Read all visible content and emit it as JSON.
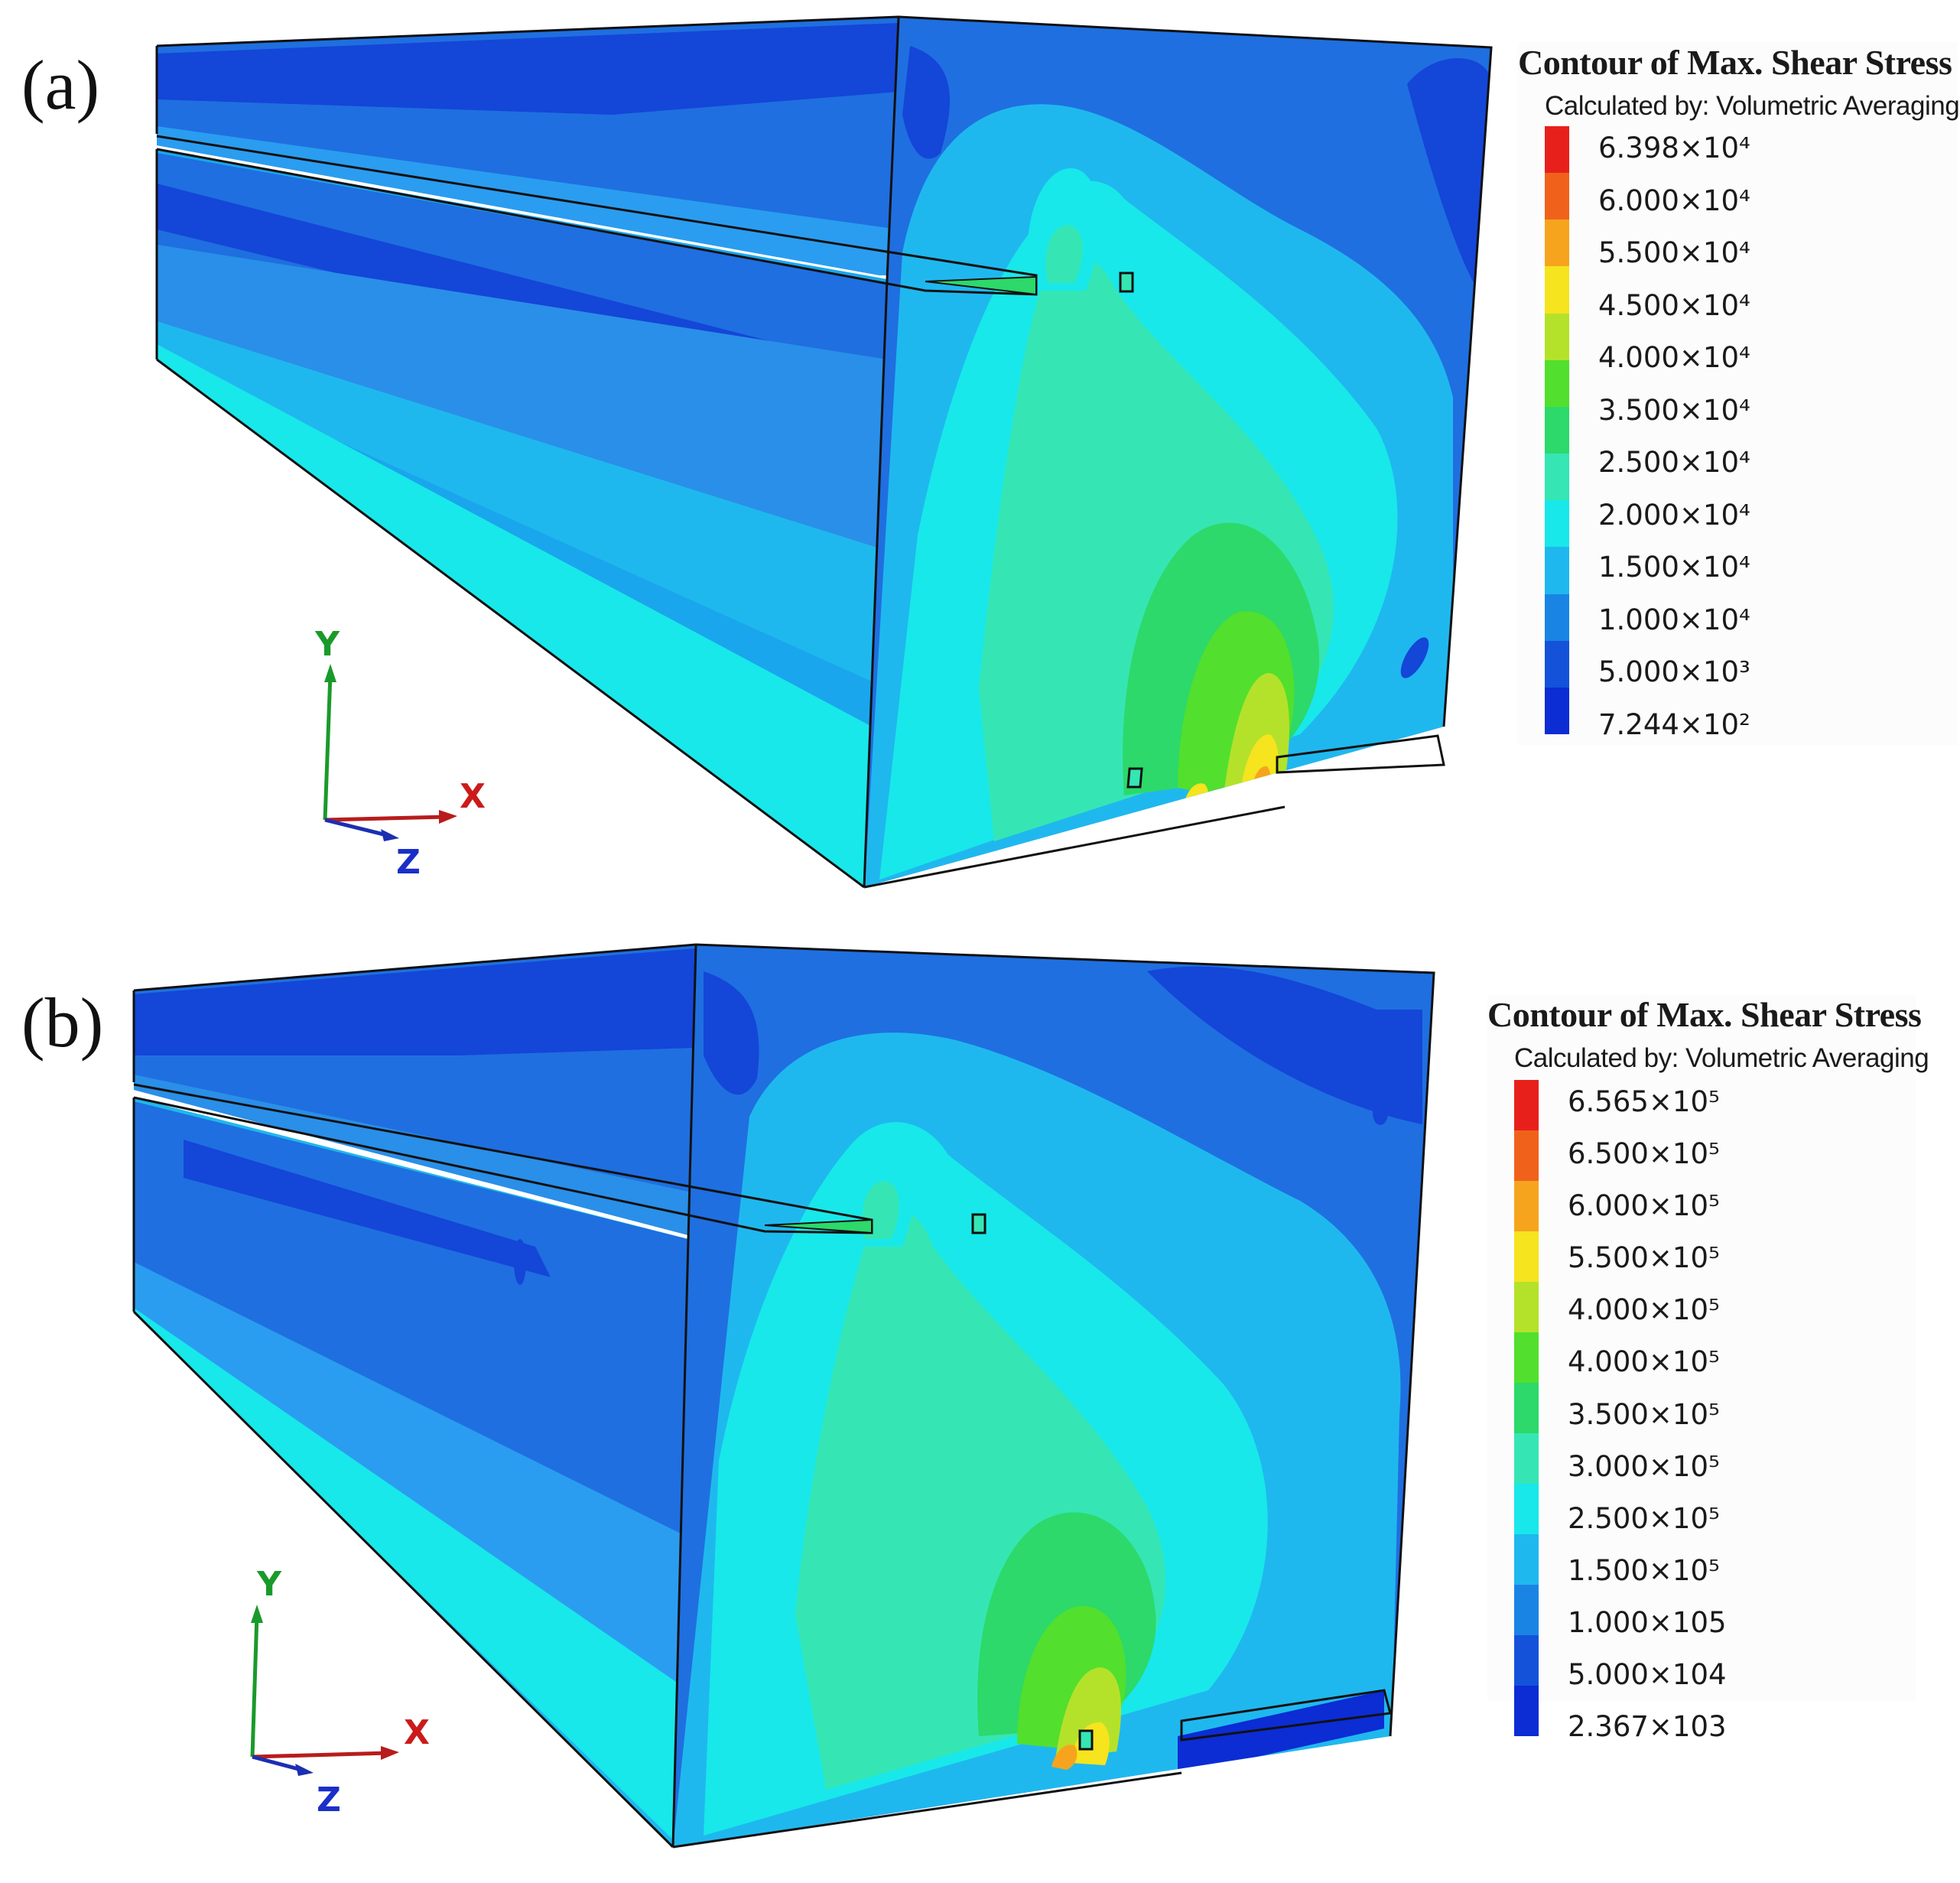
{
  "panels": [
    {
      "label": "(a)",
      "legend": {
        "title": "Contour of Max. Shear Stress",
        "subtitle": "Calculated by: Volumetric Averaging",
        "colors": [
          "#e8201c",
          "#f0621c",
          "#f6a41e",
          "#f5e41e",
          "#b4e22a",
          "#52df2e",
          "#2cd96a",
          "#35e6b4",
          "#18e8ea",
          "#1fb8ee",
          "#1a84e4",
          "#1452da",
          "#0c2cd4"
        ],
        "labels": [
          "6.398×10⁴",
          "6.000×10⁴",
          "5.500×10⁴",
          "4.500×10⁴",
          "4.000×10⁴",
          "3.500×10⁴",
          "2.500×10⁴",
          "2.000×10⁴",
          "1.500×10⁴",
          "1.000×10⁴",
          "5.000×10³",
          "7.244×10²"
        ]
      },
      "axes": {
        "y": "Y",
        "x": "X",
        "z": "Z"
      }
    },
    {
      "label": "(b)",
      "legend": {
        "title": "Contour of Max. Shear Stress",
        "subtitle": "Calculated by: Volumetric Averaging",
        "colors": [
          "#e8201c",
          "#f0621c",
          "#f6a41e",
          "#f5e41e",
          "#b4e22a",
          "#52df2e",
          "#2cd96a",
          "#35e6b4",
          "#18e8ea",
          "#1fb8ee",
          "#1a84e4",
          "#1452da",
          "#0c2cd4"
        ],
        "labels": [
          "6.565×10⁵",
          "6.500×10⁵",
          "6.000×10⁵",
          "5.500×10⁵",
          "4.000×10⁵",
          "4.000×10⁵",
          "3.500×10⁵",
          "3.000×10⁵",
          "2.500×10⁵",
          "1.500×10⁵",
          "1.000×105",
          "5.000×104",
          "2.367×103"
        ]
      },
      "axes": {
        "y": "Y",
        "x": "X",
        "z": "Z"
      }
    }
  ]
}
